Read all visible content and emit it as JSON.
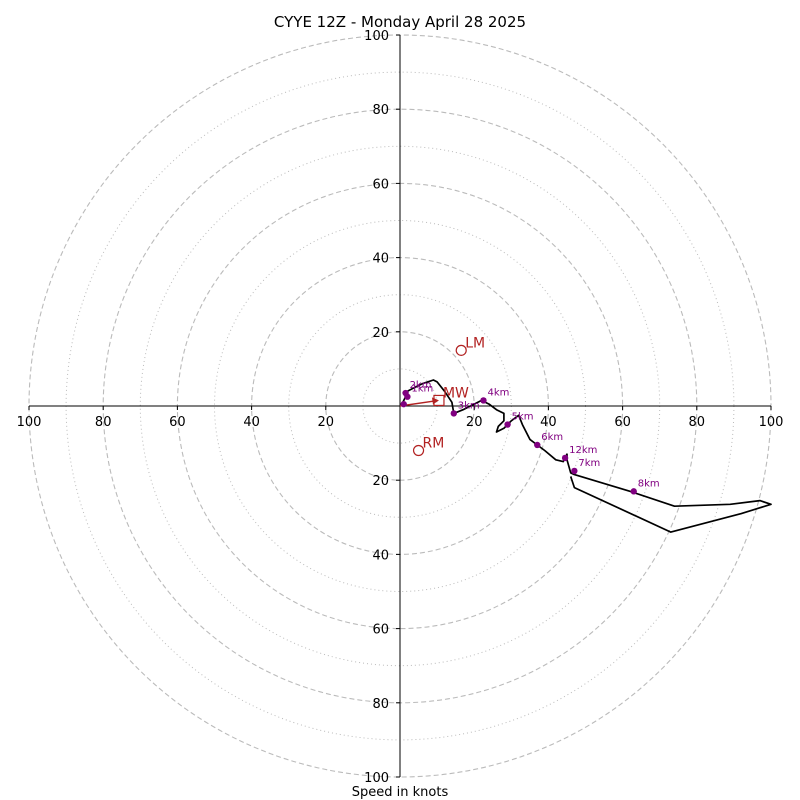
{
  "chart_data": {
    "type": "hodograph",
    "title": "CYYE 12Z - Monday April 28 2025",
    "xlabel": "Speed in knots",
    "axis_range": [
      -100,
      100
    ],
    "x_tick_labels": [
      "100",
      "80",
      "60",
      "40",
      "20",
      "20",
      "40",
      "60",
      "80",
      "100"
    ],
    "x_tick_values": [
      -100,
      -80,
      -60,
      -40,
      -20,
      20,
      40,
      60,
      80,
      100
    ],
    "y_tick_labels": [
      "100",
      "80",
      "60",
      "40",
      "20",
      "20",
      "40",
      "60",
      "80",
      "100"
    ],
    "y_tick_values": [
      100,
      80,
      60,
      40,
      20,
      -20,
      -40,
      -60,
      -80,
      -100
    ],
    "rings_dashed": [
      20,
      40,
      60,
      80,
      100
    ],
    "rings_dotted": [
      10,
      30,
      50,
      70,
      90
    ],
    "trace": [
      [
        0.5,
        0.5
      ],
      [
        1.5,
        2.5
      ],
      [
        2,
        4
      ],
      [
        4,
        5
      ],
      [
        6,
        6
      ],
      [
        9,
        7
      ],
      [
        10,
        6.5
      ],
      [
        12,
        4
      ],
      [
        13,
        2.5
      ],
      [
        14,
        1
      ],
      [
        14.5,
        -2
      ],
      [
        17,
        -1
      ],
      [
        22,
        1.5
      ],
      [
        24,
        0.5
      ],
      [
        26,
        -1
      ],
      [
        28,
        -2
      ],
      [
        28,
        -4
      ],
      [
        26.5,
        -5.5
      ],
      [
        26,
        -7
      ],
      [
        28,
        -6
      ],
      [
        30,
        -4
      ],
      [
        32,
        -2.5
      ],
      [
        33,
        -5
      ],
      [
        35,
        -9
      ],
      [
        37,
        -10.5
      ],
      [
        39,
        -12
      ],
      [
        42,
        -14.5
      ],
      [
        44,
        -15
      ],
      [
        45,
        -13
      ],
      [
        45,
        -14.5
      ],
      [
        46,
        -18
      ],
      [
        47,
        -18.5
      ],
      [
        62,
        -23
      ],
      [
        74,
        -27
      ],
      [
        89,
        -26.5
      ],
      [
        97,
        -25.5
      ],
      [
        100,
        -26.5
      ],
      [
        92,
        -29
      ],
      [
        73,
        -34
      ],
      [
        47,
        -22
      ],
      [
        46,
        -19
      ]
    ],
    "height_markers": [
      {
        "label": "1km",
        "u": 2,
        "v": 2.5
      },
      {
        "label": "2km",
        "u": 1.5,
        "v": 3.5
      },
      {
        "label": "3km",
        "u": 14.5,
        "v": -2
      },
      {
        "label": "4km",
        "u": 22.5,
        "v": 1.5
      },
      {
        "label": "5km",
        "u": 29,
        "v": -5
      },
      {
        "label": "6km",
        "u": 37,
        "v": -10.5
      },
      {
        "label": "7km",
        "u": 47,
        "v": -17.5
      },
      {
        "label": "8km",
        "u": 63,
        "v": -23
      },
      {
        "label": "12km",
        "u": 44.5,
        "v": -14
      },
      {
        "label": "",
        "u": 1,
        "v": 0.5
      }
    ],
    "storm_motion": [
      {
        "label": "LM",
        "u": 16.5,
        "v": 15
      },
      {
        "label": "RM",
        "u": 5,
        "v": -12
      },
      {
        "label": "MW",
        "u": 10.5,
        "v": 1.5
      }
    ],
    "mean_wind_vector": {
      "u": 10.5,
      "v": 1.5
    },
    "colors": {
      "trace": "#000000",
      "markers": "#800080",
      "storm_motion": "#b22222",
      "grid": "#bbbbbb"
    }
  }
}
